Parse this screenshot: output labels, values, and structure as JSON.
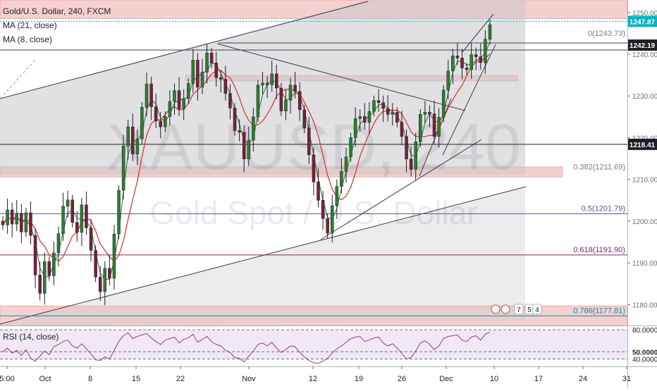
{
  "chart_data": {
    "type": "candlestick",
    "title": "Gold/U.S. Dollar, 240, FXCM",
    "watermark_symbol": "XAUUSD, 240",
    "watermark_name": "Gold Spot / U.S. Dollar",
    "indicators": [
      "MA (21, close)",
      "MA (8, close)"
    ],
    "ylim": [
      1175,
      1253
    ],
    "y_ticks": [
      1180,
      1190,
      1200,
      1210,
      1220,
      1230,
      1240,
      1250
    ],
    "x_ticks": [
      "5:00",
      "Oct",
      "8",
      "15",
      "22",
      "Nov",
      "12",
      "19",
      "26",
      "Dec",
      "10",
      "17",
      "24",
      "31"
    ],
    "price_labels": [
      {
        "value": 1247.87,
        "text": "1247.87",
        "color": "#00b5c8"
      },
      {
        "value": 1242.19,
        "text": "1242.19",
        "color": "#1c1f26"
      },
      {
        "value": 1218.41,
        "text": "1218.41",
        "color": "#1c1f26"
      }
    ],
    "fib_levels": [
      {
        "label": "0(1243.73)",
        "value": 1243.73,
        "color": "#787b86"
      },
      {
        "label": "0.382(1211.69)",
        "value": 1211.69,
        "color": "#787b86"
      },
      {
        "label": "0.5(1201.79)",
        "value": 1201.79,
        "color": "#5b4d9a"
      },
      {
        "label": "0.618(1191.90)",
        "value": 1191.9,
        "color": "#7a2a5a"
      },
      {
        "label": "0.786(1177.81)",
        "value": 1177.81,
        "color": "#0097a7"
      }
    ],
    "horizontal_lines": [
      1218.41,
      1201.79,
      1191.9
    ],
    "zones": [
      {
        "from": 1248.5,
        "to": 1253,
        "color": "#f4c7c7"
      },
      {
        "from": 1210.6,
        "to": 1213.0,
        "color": "#f4c7c7"
      },
      {
        "from": 1233.6,
        "to": 1234.9,
        "color": "#f4c7c7"
      },
      {
        "from": 1175,
        "to": 1179.7,
        "color": "#f4c7c7"
      }
    ],
    "event_markers": [
      "7",
      "5",
      "4"
    ],
    "price_path": [
      1200,
      1203,
      1199,
      1201,
      1198,
      1202,
      1196,
      1188,
      1183,
      1190,
      1186,
      1193,
      1197,
      1203,
      1206,
      1200,
      1197,
      1203,
      1199,
      1193,
      1186,
      1184,
      1189,
      1186,
      1196,
      1208,
      1218,
      1222,
      1217,
      1220,
      1227,
      1232,
      1228,
      1224,
      1222,
      1226,
      1229,
      1231,
      1226,
      1230,
      1233,
      1238,
      1233,
      1236,
      1240,
      1237,
      1235,
      1234,
      1230,
      1228,
      1222,
      1221,
      1214,
      1220,
      1225,
      1232,
      1234,
      1233,
      1235,
      1231,
      1227,
      1229,
      1232,
      1232,
      1227,
      1222,
      1215,
      1210,
      1205,
      1200,
      1198,
      1204,
      1208,
      1211,
      1216,
      1220,
      1224,
      1226,
      1224,
      1226,
      1228,
      1229,
      1227,
      1225,
      1227,
      1224,
      1220,
      1214,
      1213,
      1219,
      1225,
      1227,
      1226,
      1220,
      1224,
      1232,
      1236,
      1239,
      1240,
      1237,
      1236,
      1239,
      1240,
      1238,
      1243,
      1248
    ],
    "rsi": {
      "label": "RSI (14, close)",
      "ylim": [
        30,
        85
      ],
      "ticks": [
        80.0,
        50.0,
        40.0
      ],
      "tick_labels": [
        "80.0000",
        "50.0000",
        "40.0000"
      ],
      "values": [
        50,
        55,
        48,
        52,
        45,
        53,
        41,
        37,
        44,
        51,
        46,
        57,
        60,
        64,
        66,
        58,
        55,
        61,
        54,
        47,
        39,
        38,
        43,
        40,
        52,
        64,
        72,
        76,
        68,
        71,
        73,
        75,
        69,
        64,
        60,
        66,
        68,
        70,
        62,
        67,
        69,
        74,
        63,
        67,
        71,
        64,
        60,
        58,
        52,
        49,
        42,
        41,
        36,
        44,
        51,
        60,
        62,
        58,
        63,
        55,
        49,
        53,
        58,
        57,
        49,
        43,
        38,
        35,
        34,
        37,
        41,
        48,
        54,
        58,
        63,
        68,
        70,
        71,
        64,
        66,
        69,
        70,
        62,
        58,
        61,
        55,
        48,
        40,
        42,
        51,
        62,
        65,
        60,
        53,
        58,
        68,
        71,
        72,
        73,
        66,
        64,
        70,
        72,
        66,
        74,
        77
      ]
    }
  }
}
